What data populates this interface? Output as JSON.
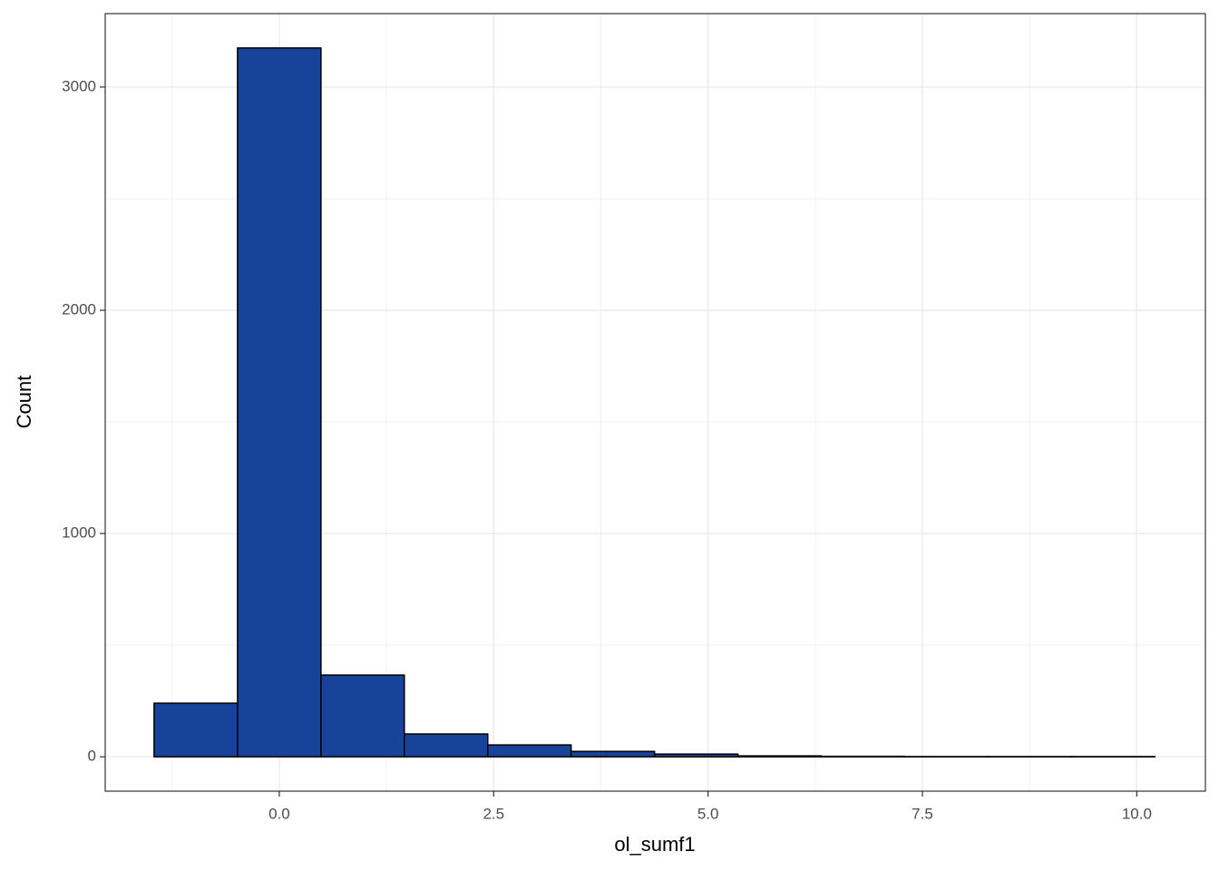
{
  "chart_data": {
    "type": "histogram",
    "x_label": "ol_sumf1",
    "y_label": "Count",
    "bins": [
      -1.46,
      -0.487,
      0.486,
      1.458,
      2.431,
      3.403,
      4.376,
      5.348,
      6.321,
      7.293,
      8.266,
      9.238,
      10.21
    ],
    "counts": [
      240,
      3175,
      366,
      102,
      53,
      24,
      12,
      4,
      2,
      1,
      1,
      1
    ],
    "color": "#17449a",
    "edge_color": "#000000",
    "xlim": [
      -2.03,
      10.8
    ],
    "ylim": [
      -154,
      3329
    ],
    "xticks": [
      {
        "value": 0,
        "label": "0.0"
      },
      2.5,
      {
        "value": 5,
        "label": "5.0"
      },
      7.5,
      {
        "value": 10,
        "label": "10.0"
      }
    ],
    "yticks": [
      0,
      1000,
      2000,
      3000
    ],
    "grid": true
  }
}
